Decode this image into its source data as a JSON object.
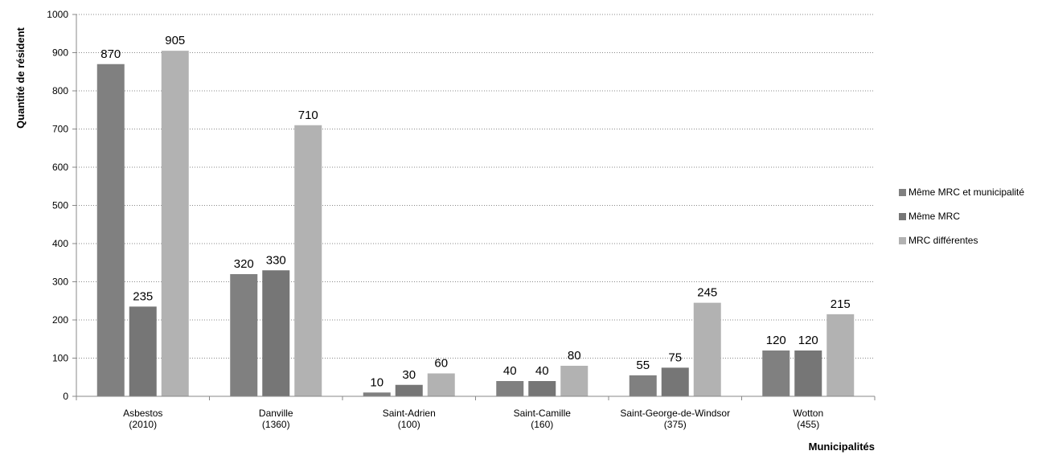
{
  "chart_data": {
    "type": "bar",
    "categories": [
      [
        "Asbestos",
        "(2010)"
      ],
      [
        "Danville",
        "(1360)"
      ],
      [
        "Saint-Adrien",
        "(100)"
      ],
      [
        "Saint-Camille",
        "(160)"
      ],
      [
        "Saint-George-de-Windsor",
        "(375)"
      ],
      [
        "Wotton",
        "(455)"
      ]
    ],
    "series": [
      {
        "name": "Même MRC et municipalité",
        "color": "#808080",
        "values": [
          870,
          320,
          10,
          40,
          55,
          120
        ]
      },
      {
        "name": "Même MRC",
        "color": "#767676",
        "values": [
          235,
          330,
          30,
          40,
          75,
          120
        ]
      },
      {
        "name": "MRC différentes",
        "color": "#b2b2b2",
        "values": [
          905,
          710,
          60,
          80,
          245,
          215
        ]
      }
    ],
    "xlabel": "Municipalités",
    "ylabel": "Quantité de résident",
    "ylim": [
      0,
      1000
    ],
    "yticks": [
      0,
      100,
      200,
      300,
      400,
      500,
      600,
      700,
      800,
      900,
      1000
    ],
    "grid": true,
    "legend_position": "right"
  }
}
